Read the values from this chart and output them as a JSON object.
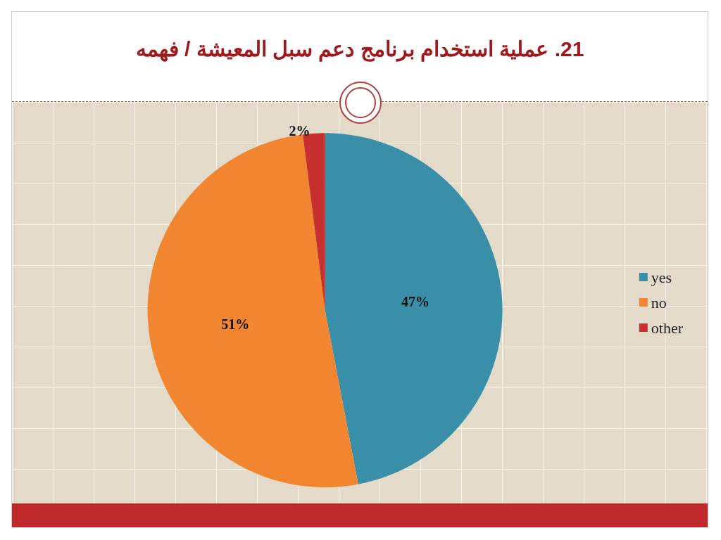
{
  "chart_data": {
    "type": "pie",
    "title": "21. عملية استخدام برنامج دعم سبل المعيشة / فهمه",
    "categories": [
      "yes",
      "no",
      "other"
    ],
    "values": [
      47,
      51,
      2
    ],
    "colors": [
      "#3a8fa8",
      "#f28530",
      "#c8302f"
    ],
    "value_labels": [
      "47%",
      "51%",
      "2%"
    ],
    "legend": "right"
  }
}
